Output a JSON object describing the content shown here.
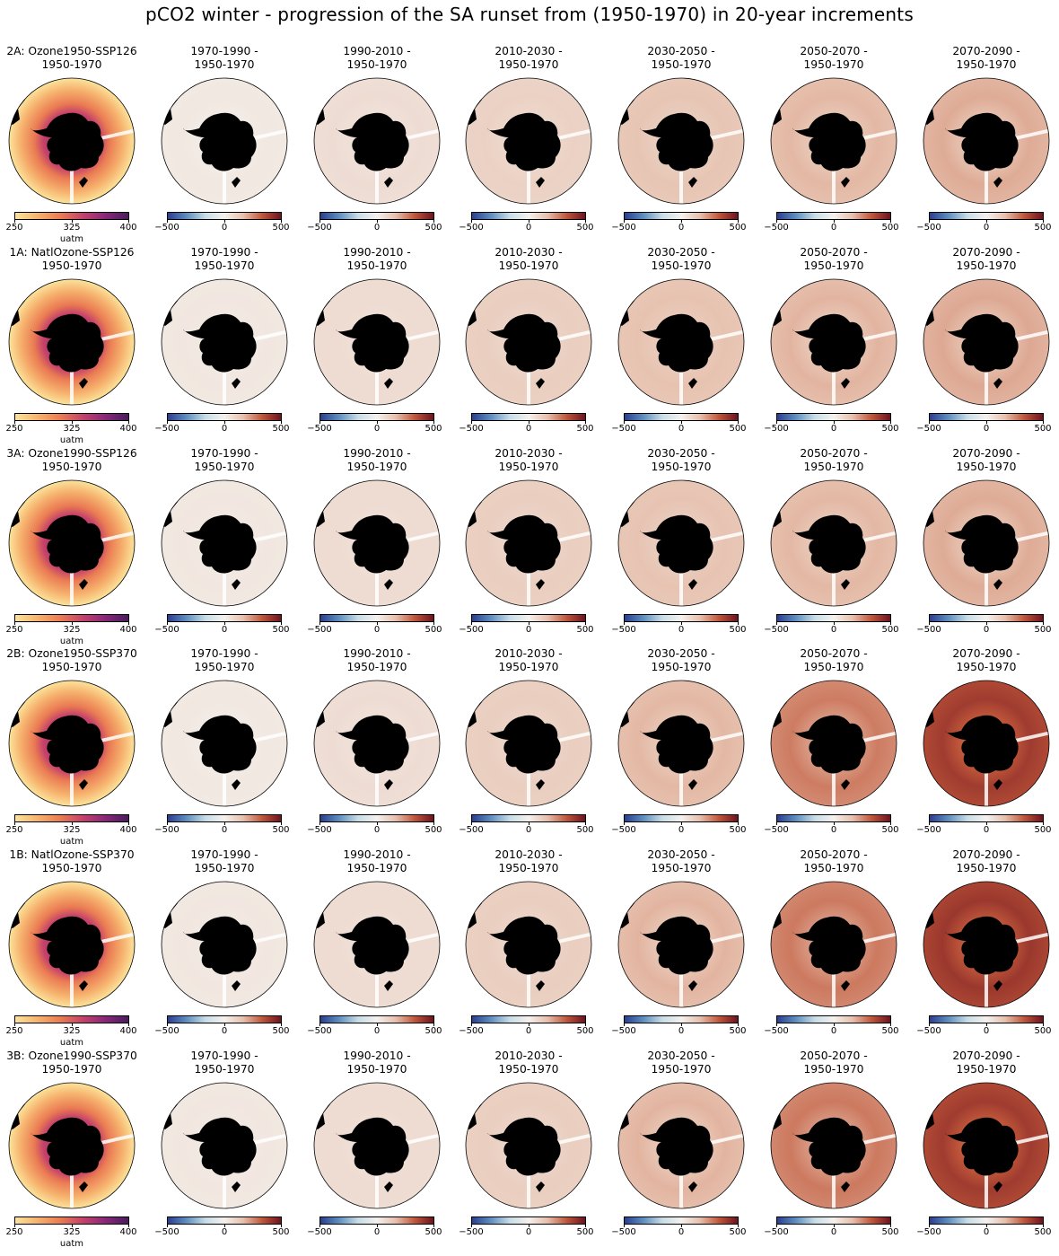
{
  "figure": {
    "title": "pCO2 winter - progression of the SA runset from (1950-1970) in 20-year increments"
  },
  "colors": {
    "diverging": [
      "#2a3f8f",
      "#5f8fc0",
      "#c8dde6",
      "#f4f1ee",
      "#e6c0ad",
      "#c0573a",
      "#6d1320"
    ],
    "sequential": [
      "#fbe39b",
      "#f6b26e",
      "#ea7b53",
      "#c4416b",
      "#88277a",
      "#4b1b5e"
    ],
    "land": "#000000"
  },
  "chart_data": {
    "type": "heatmap",
    "description_rows": [
      "2A: Ozone1950-SSP126",
      "1A: NatlOzone-SSP126",
      "3A: Ozone1990-SSP126",
      "2B: Ozone1950-SSP370",
      "1B: NatlOzone-SSP370",
      "3B: Ozone1990-SSP370"
    ],
    "rows": [
      {
        "run": "2A: Ozone1950-SSP126",
        "panels": [
          {
            "title_line1": "2A: Ozone1950-SSP126",
            "title_line2": "1950-1970",
            "kind": "absolute",
            "level": 0.45,
            "cbar_ticks": [
              "250",
              "325",
              "400"
            ],
            "cbar_label": "uatm"
          },
          {
            "title_line1": "1970-1990 -",
            "title_line2": "1950-1970",
            "kind": "difference",
            "level": 0.06,
            "cbar_ticks": [
              "−500",
              "0",
              "500"
            ]
          },
          {
            "title_line1": "1990-2010 -",
            "title_line2": "1950-1970",
            "kind": "difference",
            "level": 0.14,
            "cbar_ticks": [
              "−500",
              "0",
              "500"
            ]
          },
          {
            "title_line1": "2010-2030 -",
            "title_line2": "1950-1970",
            "kind": "difference",
            "level": 0.22,
            "cbar_ticks": [
              "−500",
              "0",
              "500"
            ]
          },
          {
            "title_line1": "2030-2050 -",
            "title_line2": "1950-1970",
            "kind": "difference",
            "level": 0.3,
            "cbar_ticks": [
              "−500",
              "0",
              "500"
            ]
          },
          {
            "title_line1": "2050-2070 -",
            "title_line2": "1950-1970",
            "kind": "difference",
            "level": 0.36,
            "cbar_ticks": [
              "−500",
              "0",
              "500"
            ]
          },
          {
            "title_line1": "2070-2090 -",
            "title_line2": "1950-1970",
            "kind": "difference",
            "level": 0.4,
            "cbar_ticks": [
              "−500",
              "0",
              "500"
            ]
          }
        ]
      },
      {
        "run": "1A: NatlOzone-SSP126",
        "panels": [
          {
            "title_line1": "1A: NatlOzone-SSP126",
            "title_line2": "1950-1970",
            "kind": "absolute",
            "level": 0.45,
            "cbar_ticks": [
              "250",
              "325",
              "400"
            ],
            "cbar_label": "uatm"
          },
          {
            "title_line1": "1970-1990 -",
            "title_line2": "1950-1970",
            "kind": "difference",
            "level": 0.07,
            "cbar_ticks": [
              "−500",
              "0",
              "500"
            ]
          },
          {
            "title_line1": "1990-2010 -",
            "title_line2": "1950-1970",
            "kind": "difference",
            "level": 0.15,
            "cbar_ticks": [
              "−500",
              "0",
              "500"
            ]
          },
          {
            "title_line1": "2010-2030 -",
            "title_line2": "1950-1970",
            "kind": "difference",
            "level": 0.24,
            "cbar_ticks": [
              "−500",
              "0",
              "500"
            ]
          },
          {
            "title_line1": "2030-2050 -",
            "title_line2": "1950-1970",
            "kind": "difference",
            "level": 0.32,
            "cbar_ticks": [
              "−500",
              "0",
              "500"
            ]
          },
          {
            "title_line1": "2050-2070 -",
            "title_line2": "1950-1970",
            "kind": "difference",
            "level": 0.37,
            "cbar_ticks": [
              "−500",
              "0",
              "500"
            ]
          },
          {
            "title_line1": "2070-2090 -",
            "title_line2": "1950-1970",
            "kind": "difference",
            "level": 0.41,
            "cbar_ticks": [
              "−500",
              "0",
              "500"
            ]
          }
        ]
      },
      {
        "run": "3A: Ozone1990-SSP126",
        "panels": [
          {
            "title_line1": "3A: Ozone1990-SSP126",
            "title_line2": "1950-1970",
            "kind": "absolute",
            "level": 0.45,
            "cbar_ticks": [
              "250",
              "325",
              "400"
            ],
            "cbar_label": "uatm"
          },
          {
            "title_line1": "1970-1990 -",
            "title_line2": "1950-1970",
            "kind": "difference",
            "level": 0.07,
            "cbar_ticks": [
              "−500",
              "0",
              "500"
            ]
          },
          {
            "title_line1": "1990-2010 -",
            "title_line2": "1950-1970",
            "kind": "difference",
            "level": 0.15,
            "cbar_ticks": [
              "−500",
              "0",
              "500"
            ]
          },
          {
            "title_line1": "2010-2030 -",
            "title_line2": "1950-1970",
            "kind": "difference",
            "level": 0.24,
            "cbar_ticks": [
              "−500",
              "0",
              "500"
            ]
          },
          {
            "title_line1": "2030-2050 -",
            "title_line2": "1950-1970",
            "kind": "difference",
            "level": 0.31,
            "cbar_ticks": [
              "−500",
              "0",
              "500"
            ]
          },
          {
            "title_line1": "2050-2070 -",
            "title_line2": "1950-1970",
            "kind": "difference",
            "level": 0.36,
            "cbar_ticks": [
              "−500",
              "0",
              "500"
            ]
          },
          {
            "title_line1": "2070-2090 -",
            "title_line2": "1950-1970",
            "kind": "difference",
            "level": 0.4,
            "cbar_ticks": [
              "−500",
              "0",
              "500"
            ]
          }
        ]
      },
      {
        "run": "2B: Ozone1950-SSP370",
        "panels": [
          {
            "title_line1": "2B: Ozone1950-SSP370",
            "title_line2": "1950-1970",
            "kind": "absolute",
            "level": 0.45,
            "cbar_ticks": [
              "250",
              "325",
              "400"
            ],
            "cbar_label": "uatm"
          },
          {
            "title_line1": "1970-1990 -",
            "title_line2": "1950-1970",
            "kind": "difference",
            "level": 0.06,
            "cbar_ticks": [
              "−500",
              "0",
              "500"
            ]
          },
          {
            "title_line1": "1990-2010 -",
            "title_line2": "1950-1970",
            "kind": "difference",
            "level": 0.14,
            "cbar_ticks": [
              "−500",
              "0",
              "500"
            ]
          },
          {
            "title_line1": "2010-2030 -",
            "title_line2": "1950-1970",
            "kind": "difference",
            "level": 0.24,
            "cbar_ticks": [
              "−500",
              "0",
              "500"
            ]
          },
          {
            "title_line1": "2030-2050 -",
            "title_line2": "1950-1970",
            "kind": "difference",
            "level": 0.36,
            "cbar_ticks": [
              "−500",
              "0",
              "500"
            ]
          },
          {
            "title_line1": "2050-2070 -",
            "title_line2": "1950-1970",
            "kind": "difference",
            "level": 0.55,
            "cbar_ticks": [
              "−500",
              "0",
              "500"
            ]
          },
          {
            "title_line1": "2070-2090 -",
            "title_line2": "1950-1970",
            "kind": "difference",
            "level": 0.8,
            "cbar_ticks": [
              "−500",
              "0",
              "500"
            ]
          }
        ]
      },
      {
        "run": "1B: NatlOzone-SSP370",
        "panels": [
          {
            "title_line1": "1B: NatlOzone-SSP370",
            "title_line2": "1950-1970",
            "kind": "absolute",
            "level": 0.45,
            "cbar_ticks": [
              "250",
              "325",
              "400"
            ],
            "cbar_label": "uatm"
          },
          {
            "title_line1": "1970-1990 -",
            "title_line2": "1950-1970",
            "kind": "difference",
            "level": 0.07,
            "cbar_ticks": [
              "−500",
              "0",
              "500"
            ]
          },
          {
            "title_line1": "1990-2010 -",
            "title_line2": "1950-1970",
            "kind": "difference",
            "level": 0.15,
            "cbar_ticks": [
              "−500",
              "0",
              "500"
            ]
          },
          {
            "title_line1": "2010-2030 -",
            "title_line2": "1950-1970",
            "kind": "difference",
            "level": 0.24,
            "cbar_ticks": [
              "−500",
              "0",
              "500"
            ]
          },
          {
            "title_line1": "2030-2050 -",
            "title_line2": "1950-1970",
            "kind": "difference",
            "level": 0.37,
            "cbar_ticks": [
              "−500",
              "0",
              "500"
            ]
          },
          {
            "title_line1": "2050-2070 -",
            "title_line2": "1950-1970",
            "kind": "difference",
            "level": 0.56,
            "cbar_ticks": [
              "−500",
              "0",
              "500"
            ]
          },
          {
            "title_line1": "2070-2090 -",
            "title_line2": "1950-1970",
            "kind": "difference",
            "level": 0.82,
            "cbar_ticks": [
              "−500",
              "0",
              "500"
            ]
          }
        ]
      },
      {
        "run": "3B: Ozone1990-SSP370",
        "panels": [
          {
            "title_line1": "3B: Ozone1990-SSP370",
            "title_line2": "1950-1970",
            "kind": "absolute",
            "level": 0.45,
            "cbar_ticks": [
              "250",
              "325",
              "400"
            ],
            "cbar_label": "uatm"
          },
          {
            "title_line1": "1970-1990 -",
            "title_line2": "1950-1970",
            "kind": "difference",
            "level": 0.07,
            "cbar_ticks": [
              "−500",
              "0",
              "500"
            ]
          },
          {
            "title_line1": "1990-2010 -",
            "title_line2": "1950-1970",
            "kind": "difference",
            "level": 0.15,
            "cbar_ticks": [
              "−500",
              "0",
              "500"
            ]
          },
          {
            "title_line1": "2010-2030 -",
            "title_line2": "1950-1970",
            "kind": "difference",
            "level": 0.24,
            "cbar_ticks": [
              "−500",
              "0",
              "500"
            ]
          },
          {
            "title_line1": "2030-2050 -",
            "title_line2": "1950-1970",
            "kind": "difference",
            "level": 0.37,
            "cbar_ticks": [
              "−500",
              "0",
              "500"
            ]
          },
          {
            "title_line1": "2050-2070 -",
            "title_line2": "1950-1970",
            "kind": "difference",
            "level": 0.56,
            "cbar_ticks": [
              "−500",
              "0",
              "500"
            ]
          },
          {
            "title_line1": "2070-2090 -",
            "title_line2": "1950-1970",
            "kind": "difference",
            "level": 0.8,
            "cbar_ticks": [
              "−500",
              "0",
              "500"
            ]
          }
        ]
      }
    ],
    "colorbars": {
      "absolute": {
        "ticks": [
          250,
          325,
          400
        ],
        "range": [
          250,
          400
        ],
        "label": "uatm",
        "cmap": "matter"
      },
      "difference": {
        "ticks": [
          -500,
          0,
          500
        ],
        "range": [
          -500,
          500
        ],
        "cmap": "balance"
      }
    }
  }
}
